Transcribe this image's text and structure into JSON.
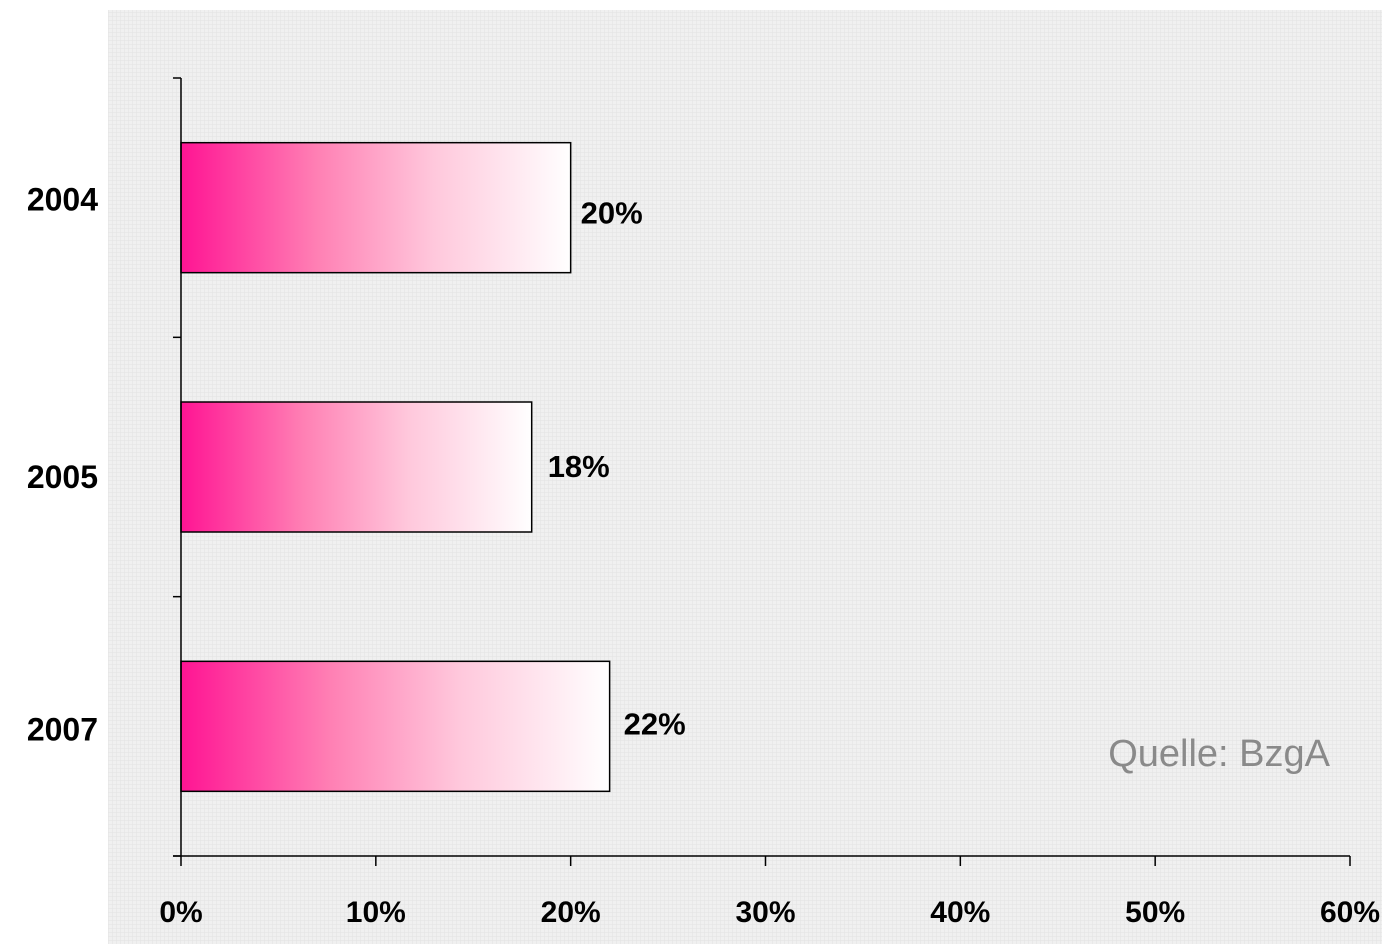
{
  "chart_data": {
    "type": "bar",
    "orientation": "horizontal",
    "categories": [
      "2004",
      "2005",
      "2007"
    ],
    "values": [
      20,
      18,
      22
    ],
    "data_labels": [
      "20%",
      "18%",
      "22%"
    ],
    "x_ticks": [
      "0%",
      "10%",
      "20%",
      "30%",
      "40%",
      "50%",
      "60%"
    ],
    "xlim": [
      0,
      60
    ],
    "title": "",
    "xlabel": "",
    "ylabel": "",
    "grid": false,
    "legend": "none",
    "source_note": "Quelle: BzgA",
    "colors": {
      "bar_start": "#ff1493",
      "bar_end": "#ffffff",
      "background": "#eeeeee",
      "source_text": "#8a8a8a"
    }
  }
}
